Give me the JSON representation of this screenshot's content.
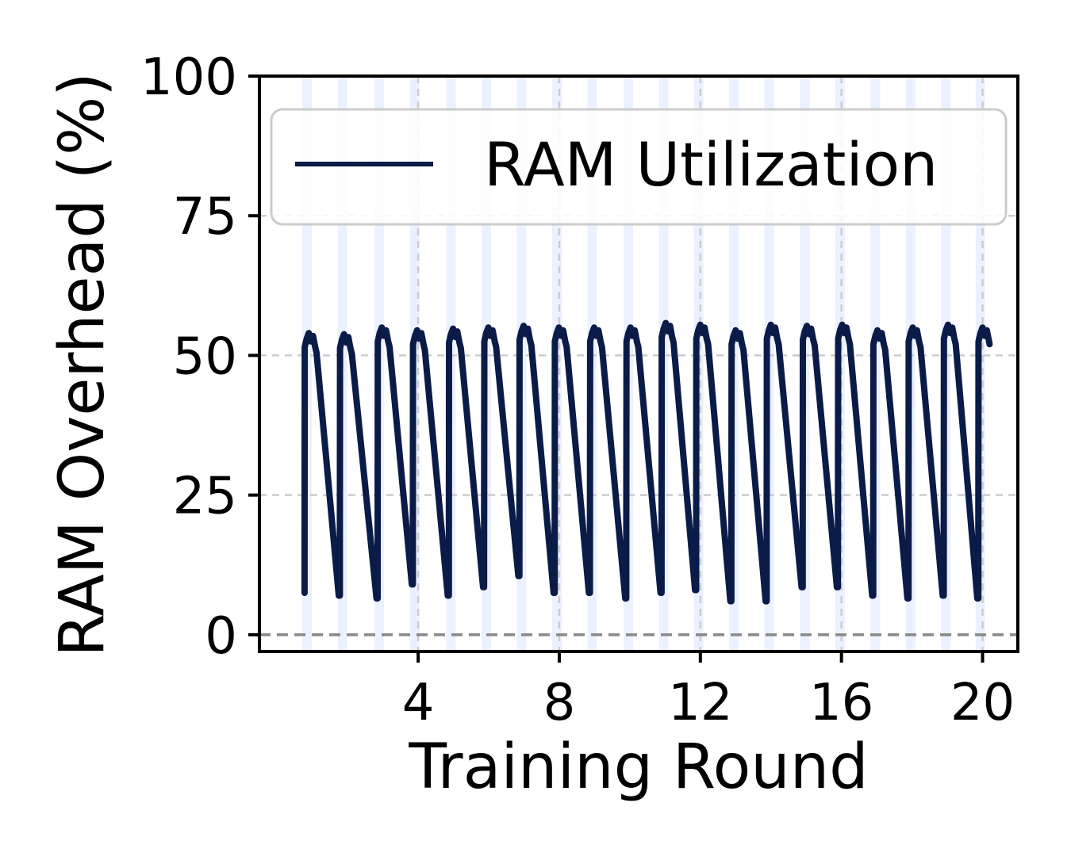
{
  "chart_data": {
    "type": "line",
    "title": "",
    "xlabel": "Training Round",
    "ylabel": "RAM Overhead (%)",
    "xlim": [
      -0.5,
      21.0
    ],
    "ylim": [
      -3,
      100
    ],
    "xticks": [
      4,
      8,
      12,
      16,
      20
    ],
    "yticks": [
      0,
      25,
      50,
      75,
      100
    ],
    "grid": true,
    "legend_position": "top-right",
    "reference_line_y": 0,
    "colors": {
      "line": "#0b1b48",
      "grid": "#cccccc",
      "zero_line": "#888888",
      "band": "#dde8ff"
    },
    "series": [
      {
        "name": "RAM Utilization",
        "rounds": [
          {
            "start": 0.78,
            "low": 7.5,
            "peak": 54.0
          },
          {
            "start": 1.78,
            "low": 7.0,
            "peak": 53.8
          },
          {
            "start": 2.85,
            "low": 6.5,
            "peak": 55.0
          },
          {
            "start": 3.85,
            "low": 9.0,
            "peak": 54.5
          },
          {
            "start": 4.87,
            "low": 7.0,
            "peak": 54.8
          },
          {
            "start": 5.87,
            "low": 8.5,
            "peak": 55.0
          },
          {
            "start": 6.87,
            "low": 10.5,
            "peak": 55.3
          },
          {
            "start": 7.87,
            "low": 7.5,
            "peak": 55.0
          },
          {
            "start": 8.87,
            "low": 7.5,
            "peak": 55.0
          },
          {
            "start": 9.9,
            "low": 6.5,
            "peak": 55.0
          },
          {
            "start": 10.9,
            "low": 7.5,
            "peak": 55.8
          },
          {
            "start": 11.88,
            "low": 8.0,
            "peak": 55.5
          },
          {
            "start": 12.88,
            "low": 6.0,
            "peak": 54.5
          },
          {
            "start": 13.88,
            "low": 6.0,
            "peak": 55.5
          },
          {
            "start": 14.9,
            "low": 8.5,
            "peak": 55.3
          },
          {
            "start": 15.9,
            "low": 8.5,
            "peak": 55.5
          },
          {
            "start": 16.9,
            "low": 7.0,
            "peak": 54.5
          },
          {
            "start": 17.9,
            "low": 6.5,
            "peak": 55.0
          },
          {
            "start": 18.9,
            "low": 7.0,
            "peak": 55.5
          },
          {
            "start": 19.88,
            "low": 6.5,
            "peak": 55.0
          }
        ],
        "end": {
          "x": 20.2,
          "y": 52.0
        }
      }
    ],
    "shaded_bands_x": [
      0.85,
      1.85,
      2.9,
      3.9,
      4.93,
      5.93,
      6.93,
      7.93,
      8.93,
      9.96,
      10.96,
      11.95,
      12.95,
      13.95,
      14.96,
      15.96,
      16.96,
      17.96,
      18.96,
      19.94
    ]
  }
}
